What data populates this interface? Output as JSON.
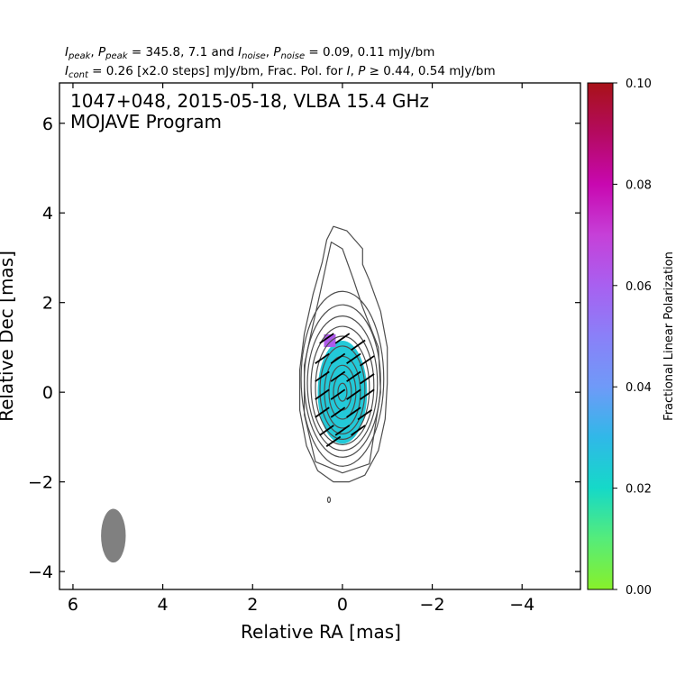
{
  "header": {
    "line1": {
      "p1": "I",
      "s1": "peak",
      "p2": ", ",
      "p3": "P",
      "s2": "peak",
      "p4": " = 345.8, 7.1 and ",
      "p5": "I",
      "s3": "noise",
      "p6": ", ",
      "p7": "P",
      "s4": "noise",
      "p8": " = 0.09, 0.11 mJy/bm"
    },
    "line2": {
      "p1": "I",
      "s1": "cont",
      "p2": " = 0.26 [x2.0 steps] mJy/bm, Frac. Pol. for ",
      "p3": "I",
      "p4": ", ",
      "p5": "P",
      "p6": " ≥ 0.44, 0.54 mJy/bm"
    }
  },
  "chart_data": {
    "type": "contour",
    "title_line1": "1047+048, 2015-05-18, VLBA 15.4 GHz",
    "title_line2": "MOJAVE Program",
    "xlabel": "Relative RA [mas]",
    "ylabel": "Relative Dec [mas]",
    "xlim": [
      6.3,
      -5.3
    ],
    "ylim": [
      -4.4,
      6.9
    ],
    "x_ticks": [
      6,
      4,
      2,
      0,
      -2,
      -4
    ],
    "x_tick_labels": [
      "6",
      "4",
      "2",
      "0",
      "−2",
      "−4"
    ],
    "y_ticks": [
      -4,
      -2,
      0,
      2,
      4,
      6
    ],
    "y_tick_labels": [
      "−4",
      "−2",
      "0",
      "2",
      "4",
      "6"
    ],
    "beam": {
      "x": 5.1,
      "y": -3.2,
      "major_mas": 1.2,
      "minor_mas": 0.55,
      "color": "#808080"
    },
    "contours": {
      "color": "#4d4d4d",
      "outer": [
        [
          0.2,
          3.7
        ],
        [
          -0.1,
          3.6
        ],
        [
          -0.45,
          3.2
        ],
        [
          -0.45,
          2.85
        ],
        [
          -0.6,
          2.5
        ],
        [
          -0.85,
          1.8
        ],
        [
          -1.0,
          1.0
        ],
        [
          -1.0,
          0.2
        ],
        [
          -0.95,
          -0.6
        ],
        [
          -0.8,
          -1.3
        ],
        [
          -0.5,
          -1.85
        ],
        [
          -0.15,
          -2.0
        ],
        [
          0.2,
          -2.0
        ],
        [
          0.55,
          -1.75
        ],
        [
          0.8,
          -1.2
        ],
        [
          0.95,
          -0.4
        ],
        [
          0.95,
          0.5
        ],
        [
          0.85,
          1.3
        ],
        [
          0.65,
          2.2
        ],
        [
          0.45,
          2.9
        ],
        [
          0.35,
          3.4
        ]
      ],
      "upper": [
        [
          0.25,
          3.35
        ],
        [
          0.0,
          3.2
        ],
        [
          -0.25,
          2.5
        ],
        [
          -0.45,
          1.9
        ],
        [
          -0.8,
          1.0
        ],
        [
          -0.85,
          0.0
        ],
        [
          -0.6,
          -1.6
        ],
        [
          0.0,
          -1.8
        ],
        [
          0.6,
          -1.55
        ],
        [
          0.85,
          -0.5
        ],
        [
          0.85,
          0.6
        ],
        [
          0.7,
          1.3
        ],
        [
          0.5,
          2.2
        ],
        [
          0.35,
          2.9
        ]
      ],
      "ellipses": [
        {
          "cx": 0.0,
          "cy": 0.3,
          "rx": 0.92,
          "ry": 1.95
        },
        {
          "cx": 0.0,
          "cy": 0.25,
          "rx": 0.85,
          "ry": 1.7
        },
        {
          "cx": 0.0,
          "cy": 0.2,
          "rx": 0.78,
          "ry": 1.5
        },
        {
          "cx": 0.0,
          "cy": 0.15,
          "rx": 0.7,
          "ry": 1.32
        },
        {
          "cx": 0.0,
          "cy": 0.1,
          "rx": 0.6,
          "ry": 1.15
        },
        {
          "cx": 0.0,
          "cy": 0.05,
          "rx": 0.5,
          "ry": 0.98
        },
        {
          "cx": 0.0,
          "cy": 0.0,
          "rx": 0.4,
          "ry": 0.8
        },
        {
          "cx": 0.0,
          "cy": 0.0,
          "rx": 0.3,
          "ry": 0.6
        },
        {
          "cx": 0.0,
          "cy": 0.0,
          "rx": 0.2,
          "ry": 0.4
        },
        {
          "cx": 0.0,
          "cy": 0.0,
          "rx": 0.1,
          "ry": 0.2
        }
      ],
      "blip": {
        "x": 0.3,
        "y": -2.4
      }
    },
    "polarization_region": {
      "cx": 0.0,
      "cy": 0.0,
      "rx": 0.55,
      "ry": 1.15,
      "frac_pol": 0.025
    },
    "polarization_patch": {
      "x": 0.35,
      "y": 1.15,
      "frac_pol": 0.062
    },
    "evpa_vectors": {
      "color": "#000000",
      "length_mas": 0.38,
      "angle_deg": 35,
      "points": [
        [
          0.35,
          1.2
        ],
        [
          0.0,
          1.2
        ],
        [
          -0.35,
          1.05
        ],
        [
          0.45,
          0.75
        ],
        [
          0.1,
          0.75
        ],
        [
          -0.25,
          0.75
        ],
        [
          -0.55,
          0.7
        ],
        [
          0.45,
          0.35
        ],
        [
          0.1,
          0.35
        ],
        [
          -0.25,
          0.35
        ],
        [
          -0.55,
          0.3
        ],
        [
          0.45,
          -0.05
        ],
        [
          0.1,
          -0.05
        ],
        [
          -0.25,
          -0.05
        ],
        [
          -0.55,
          -0.05
        ],
        [
          0.45,
          -0.45
        ],
        [
          0.1,
          -0.45
        ],
        [
          -0.25,
          -0.45
        ],
        [
          -0.5,
          -0.5
        ],
        [
          0.35,
          -0.85
        ],
        [
          0.0,
          -0.85
        ],
        [
          -0.35,
          -0.85
        ],
        [
          0.2,
          -1.1
        ]
      ]
    },
    "colorbar": {
      "label": "Fractional Linear Polarization",
      "range": [
        0.0,
        0.1
      ],
      "ticks": [
        0.0,
        0.02,
        0.04,
        0.06,
        0.08,
        0.1
      ],
      "tick_labels": [
        "0.00",
        "0.02",
        "0.04",
        "0.06",
        "0.08",
        "0.10"
      ],
      "stops": [
        {
          "v": 0.0,
          "color": "#88f02a"
        },
        {
          "v": 0.01,
          "color": "#55ec7a"
        },
        {
          "v": 0.02,
          "color": "#15d9c8"
        },
        {
          "v": 0.03,
          "color": "#30b8e8"
        },
        {
          "v": 0.04,
          "color": "#6f9af8"
        },
        {
          "v": 0.05,
          "color": "#8a80f8"
        },
        {
          "v": 0.06,
          "color": "#a860f0"
        },
        {
          "v": 0.07,
          "color": "#c640d8"
        },
        {
          "v": 0.08,
          "color": "#c808b0"
        },
        {
          "v": 0.09,
          "color": "#b40a60"
        },
        {
          "v": 0.1,
          "color": "#a81218"
        }
      ]
    }
  }
}
